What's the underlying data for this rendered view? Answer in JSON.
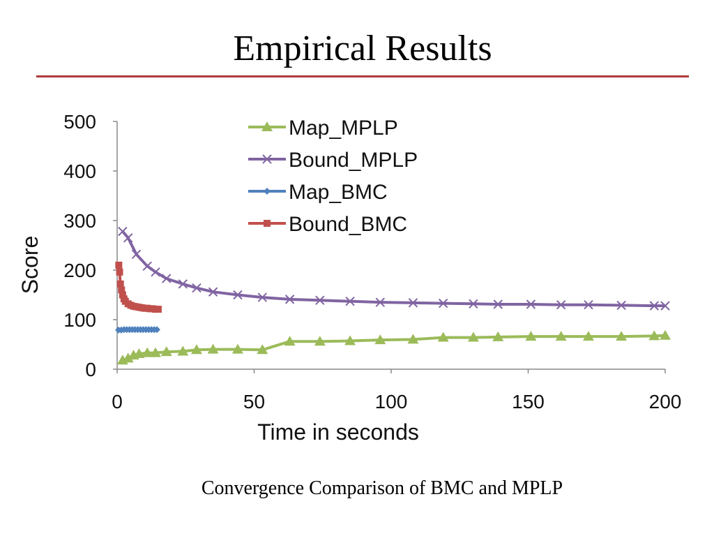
{
  "slide": {
    "title": "Empirical Results",
    "caption": "Convergence Comparison of BMC and MPLP"
  },
  "chart_data": {
    "type": "line",
    "xlabel": "Time in seconds",
    "ylabel": "Score",
    "xlim": [
      0,
      200
    ],
    "ylim": [
      0,
      500
    ],
    "xticks": [
      "0",
      "50",
      "100",
      "150",
      "200"
    ],
    "yticks": [
      "0",
      "100",
      "200",
      "300",
      "400",
      "500"
    ],
    "grid": false,
    "legend_position": "top-center",
    "series": [
      {
        "name": "Map_MPLP",
        "color": "#9bbb59",
        "marker": "triangle",
        "points": [
          [
            2,
            18
          ],
          [
            4,
            22
          ],
          [
            6,
            28
          ],
          [
            8,
            31
          ],
          [
            11,
            33
          ],
          [
            14,
            33
          ],
          [
            18,
            35
          ],
          [
            24,
            36
          ],
          [
            29,
            39
          ],
          [
            35,
            40
          ],
          [
            44,
            40
          ],
          [
            53,
            39
          ],
          [
            63,
            56
          ],
          [
            74,
            56
          ],
          [
            85,
            57
          ],
          [
            96,
            59
          ],
          [
            108,
            60
          ],
          [
            119,
            64
          ],
          [
            130,
            64
          ],
          [
            139,
            65
          ],
          [
            151,
            66
          ],
          [
            162,
            66
          ],
          [
            172,
            66
          ],
          [
            184,
            66
          ],
          [
            196,
            67
          ],
          [
            200,
            68
          ]
        ]
      },
      {
        "name": "Bound_MPLP",
        "color": "#8064a2",
        "marker": "x",
        "points": [
          [
            2,
            278
          ],
          [
            4,
            265
          ],
          [
            7,
            232
          ],
          [
            11,
            208
          ],
          [
            14,
            196
          ],
          [
            18,
            183
          ],
          [
            24,
            172
          ],
          [
            29,
            164
          ],
          [
            35,
            156
          ],
          [
            44,
            150
          ],
          [
            53,
            145
          ],
          [
            63,
            141
          ],
          [
            74,
            139
          ],
          [
            85,
            137
          ],
          [
            96,
            135
          ],
          [
            108,
            134
          ],
          [
            119,
            133
          ],
          [
            130,
            132
          ],
          [
            139,
            131
          ],
          [
            151,
            131
          ],
          [
            162,
            130
          ],
          [
            172,
            130
          ],
          [
            184,
            129
          ],
          [
            196,
            128
          ],
          [
            200,
            128
          ]
        ]
      },
      {
        "name": "Map_BMC",
        "color": "#4f81bd",
        "marker": "diamond",
        "points": [
          [
            0.5,
            79
          ],
          [
            1.5,
            79
          ],
          [
            2.5,
            80
          ],
          [
            3.5,
            80
          ],
          [
            4.5,
            80
          ],
          [
            5.5,
            80
          ],
          [
            6.5,
            80
          ],
          [
            7.5,
            80
          ],
          [
            8.5,
            80
          ],
          [
            9.5,
            80
          ],
          [
            10.5,
            80
          ],
          [
            11.5,
            80
          ],
          [
            12.5,
            80
          ],
          [
            13.5,
            80
          ],
          [
            14.5,
            80
          ]
        ]
      },
      {
        "name": "Bound_BMC",
        "color": "#c0504d",
        "marker": "square",
        "points": [
          [
            0.6,
            210
          ],
          [
            0.9,
            196
          ],
          [
            1.2,
            172
          ],
          [
            1.6,
            160
          ],
          [
            2,
            150
          ],
          [
            2.5,
            142
          ],
          [
            3,
            137
          ],
          [
            4,
            132
          ],
          [
            5,
            129
          ],
          [
            6,
            127
          ],
          [
            7,
            126
          ],
          [
            8,
            125
          ],
          [
            9,
            124
          ],
          [
            10,
            123
          ],
          [
            11,
            123
          ],
          [
            12,
            122
          ],
          [
            13,
            122
          ],
          [
            14,
            121
          ],
          [
            15,
            121
          ]
        ]
      }
    ]
  }
}
